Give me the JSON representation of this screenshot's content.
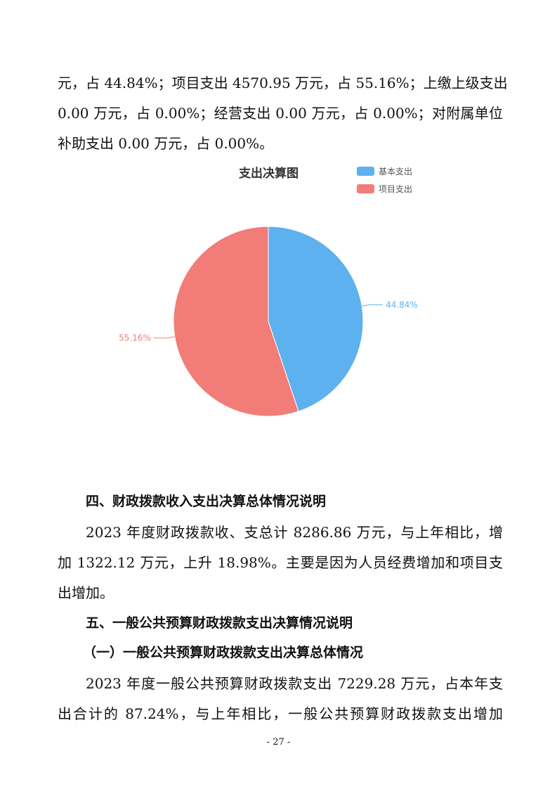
{
  "paragraph_top": {
    "lines": [
      "元，占 44.84%；项目支出 4570.95 万元，占 55.16%；上缴上级支出",
      "0.00 万元，占 0.00%；经营支出 0.00 万元，占 0.00%；对附属单位",
      "补助支出 0.00 万元，占 0.00%。"
    ]
  },
  "chart_data": {
    "type": "pie",
    "title": "支出决算图",
    "legend_placement": "top-right",
    "categories": [
      "基本支出",
      "项目支出"
    ],
    "values": [
      44.84,
      55.16
    ],
    "labels": [
      "44.84%",
      "55.16%"
    ],
    "colors": [
      "#5DB1EE",
      "#F27C78"
    ]
  },
  "section4": {
    "heading": "四、财政拨款收入支出决算总体情况说明",
    "lines": [
      "2023 年度财政拨款收、支总计 8286.86 万元，与上年相比，增",
      "加 1322.12 万元，上升 18.98%。主要是因为人员经费增加和项目支",
      "出增加。"
    ]
  },
  "section5": {
    "heading": "五、一般公共预算财政拨款支出决算情况说明",
    "subheading": "（一）一般公共预算财政拨款支出决算总体情况",
    "lines": [
      "2023 年度一般公共预算财政拨款支出 7229.28 万元，占本年支",
      "出合计的 87.24%，与上年相比，一般公共预算财政拨款支出增加"
    ]
  },
  "page_number": "- 27 -"
}
